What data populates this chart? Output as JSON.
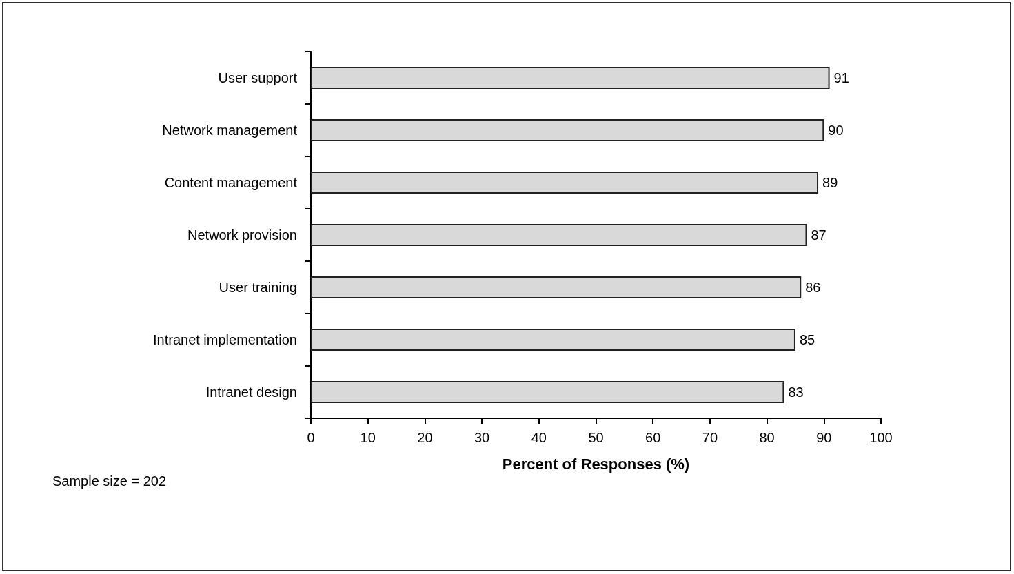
{
  "chart_data": {
    "type": "bar",
    "orientation": "horizontal",
    "xlabel": "Percent of Responses (%)",
    "categories": [
      "User support",
      "Network management",
      "Content management",
      "Network provision",
      "User training",
      "Intranet implementation",
      "Intranet design"
    ],
    "values": [
      91,
      90,
      89,
      87,
      86,
      85,
      83
    ],
    "color": "#d9d9d9",
    "xlim": [
      0,
      100
    ],
    "xticks": [
      0,
      10,
      20,
      30,
      40,
      50,
      60,
      70,
      80,
      90,
      100
    ],
    "data_labels": true,
    "grid": false,
    "annotations": [
      "Sample size = 202"
    ]
  }
}
